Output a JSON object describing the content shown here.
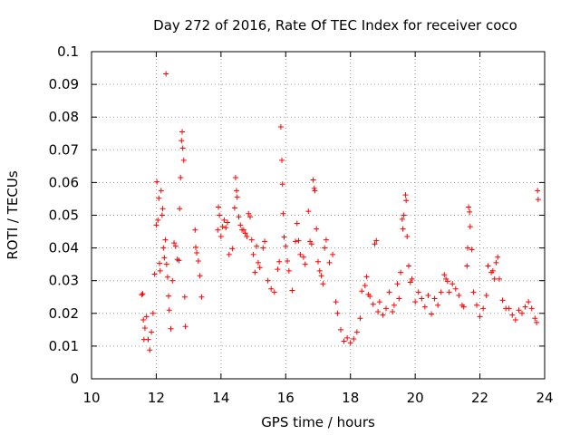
{
  "chart_data": {
    "type": "scatter",
    "title": "Day 272 of 2016, Rate Of TEC Index for receiver coco",
    "xlabel": "GPS time / hours",
    "ylabel": "ROTI / TECUs",
    "xlim": [
      10,
      24
    ],
    "ylim": [
      0,
      0.1
    ],
    "xticks": [
      "10",
      "12",
      "14",
      "16",
      "18",
      "20",
      "22",
      "24"
    ],
    "yticks": [
      "0",
      "0.01",
      "0.02",
      "0.03",
      "0.04",
      "0.05",
      "0.06",
      "0.07",
      "0.08",
      "0.09",
      "0.1"
    ],
    "grid": true,
    "marker": "plus",
    "color": "#ff0000",
    "series": [
      {
        "name": "ROTI",
        "points": [
          [
            11.55,
            0.0257
          ],
          [
            11.58,
            0.026
          ],
          [
            11.6,
            0.018
          ],
          [
            11.62,
            0.012
          ],
          [
            11.65,
            0.0155
          ],
          [
            11.7,
            0.019
          ],
          [
            11.75,
            0.012
          ],
          [
            11.8,
            0.0088
          ],
          [
            11.85,
            0.0143
          ],
          [
            11.9,
            0.02
          ],
          [
            11.95,
            0.032
          ],
          [
            12.0,
            0.047
          ],
          [
            12.02,
            0.0602
          ],
          [
            12.05,
            0.0485
          ],
          [
            12.08,
            0.0552
          ],
          [
            12.1,
            0.0353
          ],
          [
            12.12,
            0.033
          ],
          [
            12.15,
            0.0575
          ],
          [
            12.18,
            0.05
          ],
          [
            12.2,
            0.052
          ],
          [
            12.22,
            0.04
          ],
          [
            12.25,
            0.037
          ],
          [
            12.28,
            0.0425
          ],
          [
            12.3,
            0.0932
          ],
          [
            12.32,
            0.035
          ],
          [
            12.35,
            0.0311
          ],
          [
            12.38,
            0.0253
          ],
          [
            12.4,
            0.021
          ],
          [
            12.45,
            0.0153
          ],
          [
            12.5,
            0.03
          ],
          [
            12.55,
            0.0415
          ],
          [
            12.6,
            0.0405
          ],
          [
            12.65,
            0.0365
          ],
          [
            12.7,
            0.0362
          ],
          [
            12.72,
            0.052
          ],
          [
            12.75,
            0.0615
          ],
          [
            12.78,
            0.0728
          ],
          [
            12.8,
            0.0755
          ],
          [
            12.82,
            0.0705
          ],
          [
            12.85,
            0.0668
          ],
          [
            12.88,
            0.025
          ],
          [
            12.9,
            0.016
          ],
          [
            13.2,
            0.0455
          ],
          [
            13.22,
            0.0402
          ],
          [
            13.25,
            0.0385
          ],
          [
            13.3,
            0.036
          ],
          [
            13.35,
            0.0315
          ],
          [
            13.4,
            0.025
          ],
          [
            13.9,
            0.0455
          ],
          [
            13.92,
            0.0525
          ],
          [
            13.95,
            0.05
          ],
          [
            14.0,
            0.0435
          ],
          [
            14.05,
            0.0465
          ],
          [
            14.1,
            0.0485
          ],
          [
            14.15,
            0.0462
          ],
          [
            14.2,
            0.0478
          ],
          [
            14.25,
            0.038
          ],
          [
            14.35,
            0.0398
          ],
          [
            14.42,
            0.0522
          ],
          [
            14.45,
            0.0615
          ],
          [
            14.48,
            0.0575
          ],
          [
            14.5,
            0.0555
          ],
          [
            14.55,
            0.0495
          ],
          [
            14.6,
            0.047
          ],
          [
            14.65,
            0.0455
          ],
          [
            14.7,
            0.0455
          ],
          [
            14.75,
            0.0445
          ],
          [
            14.8,
            0.0435
          ],
          [
            14.85,
            0.0505
          ],
          [
            14.9,
            0.0495
          ],
          [
            14.95,
            0.0425
          ],
          [
            15.0,
            0.038
          ],
          [
            15.05,
            0.0325
          ],
          [
            15.1,
            0.0405
          ],
          [
            15.15,
            0.0355
          ],
          [
            15.2,
            0.034
          ],
          [
            15.3,
            0.04
          ],
          [
            15.35,
            0.042
          ],
          [
            15.45,
            0.03
          ],
          [
            15.55,
            0.0275
          ],
          [
            15.65,
            0.0265
          ],
          [
            15.75,
            0.0335
          ],
          [
            15.8,
            0.0358
          ],
          [
            15.85,
            0.077
          ],
          [
            15.88,
            0.0668
          ],
          [
            15.9,
            0.0595
          ],
          [
            15.92,
            0.0505
          ],
          [
            15.95,
            0.0433
          ],
          [
            16.0,
            0.0405
          ],
          [
            16.05,
            0.036
          ],
          [
            16.1,
            0.033
          ],
          [
            16.2,
            0.027
          ],
          [
            16.3,
            0.042
          ],
          [
            16.35,
            0.0475
          ],
          [
            16.4,
            0.0422
          ],
          [
            16.45,
            0.038
          ],
          [
            16.55,
            0.0372
          ],
          [
            16.6,
            0.035
          ],
          [
            16.7,
            0.0512
          ],
          [
            16.75,
            0.042
          ],
          [
            16.8,
            0.0412
          ],
          [
            16.85,
            0.0608
          ],
          [
            16.88,
            0.0582
          ],
          [
            16.9,
            0.0575
          ],
          [
            16.95,
            0.0458
          ],
          [
            17.0,
            0.0358
          ],
          [
            17.05,
            0.033
          ],
          [
            17.1,
            0.0315
          ],
          [
            17.15,
            0.029
          ],
          [
            17.2,
            0.04
          ],
          [
            17.25,
            0.0425
          ],
          [
            17.35,
            0.0355
          ],
          [
            17.45,
            0.038
          ],
          [
            17.55,
            0.0235
          ],
          [
            17.6,
            0.02
          ],
          [
            17.7,
            0.015
          ],
          [
            17.8,
            0.0115
          ],
          [
            17.9,
            0.0125
          ],
          [
            18.0,
            0.011
          ],
          [
            18.1,
            0.0122
          ],
          [
            18.2,
            0.0143
          ],
          [
            18.3,
            0.0185
          ],
          [
            18.35,
            0.0268
          ],
          [
            18.45,
            0.0285
          ],
          [
            18.5,
            0.0312
          ],
          [
            18.55,
            0.0258
          ],
          [
            18.6,
            0.0252
          ],
          [
            18.7,
            0.0228
          ],
          [
            18.75,
            0.0412
          ],
          [
            18.8,
            0.0422
          ],
          [
            18.85,
            0.0205
          ],
          [
            18.9,
            0.0235
          ],
          [
            19.0,
            0.0195
          ],
          [
            19.1,
            0.0215
          ],
          [
            19.2,
            0.0265
          ],
          [
            19.3,
            0.0205
          ],
          [
            19.35,
            0.0225
          ],
          [
            19.45,
            0.029
          ],
          [
            19.5,
            0.0245
          ],
          [
            19.55,
            0.0325
          ],
          [
            19.6,
            0.0488
          ],
          [
            19.62,
            0.0458
          ],
          [
            19.65,
            0.05
          ],
          [
            19.7,
            0.0562
          ],
          [
            19.72,
            0.0545
          ],
          [
            19.75,
            0.0435
          ],
          [
            19.8,
            0.0345
          ],
          [
            19.85,
            0.0295
          ],
          [
            19.9,
            0.0305
          ],
          [
            20.0,
            0.0235
          ],
          [
            20.1,
            0.0265
          ],
          [
            20.2,
            0.0245
          ],
          [
            20.3,
            0.022
          ],
          [
            20.4,
            0.0255
          ],
          [
            20.5,
            0.0198
          ],
          [
            20.6,
            0.0245
          ],
          [
            20.7,
            0.0225
          ],
          [
            20.8,
            0.0265
          ],
          [
            20.9,
            0.0318
          ],
          [
            20.95,
            0.0305
          ],
          [
            21.0,
            0.0298
          ],
          [
            21.05,
            0.0265
          ],
          [
            21.15,
            0.029
          ],
          [
            21.25,
            0.0275
          ],
          [
            21.35,
            0.0255
          ],
          [
            21.45,
            0.0225
          ],
          [
            21.5,
            0.022
          ],
          [
            21.6,
            0.0345
          ],
          [
            21.62,
            0.04
          ],
          [
            21.65,
            0.0525
          ],
          [
            21.68,
            0.051
          ],
          [
            21.7,
            0.0465
          ],
          [
            21.75,
            0.0395
          ],
          [
            21.8,
            0.0265
          ],
          [
            21.9,
            0.0225
          ],
          [
            22.0,
            0.019
          ],
          [
            22.1,
            0.0215
          ],
          [
            22.2,
            0.0255
          ],
          [
            22.25,
            0.0345
          ],
          [
            22.35,
            0.0325
          ],
          [
            22.4,
            0.033
          ],
          [
            22.45,
            0.0305
          ],
          [
            22.5,
            0.0355
          ],
          [
            22.55,
            0.0372
          ],
          [
            22.6,
            0.0305
          ],
          [
            22.7,
            0.024
          ],
          [
            22.8,
            0.0215
          ],
          [
            22.9,
            0.0215
          ],
          [
            23.0,
            0.0195
          ],
          [
            23.1,
            0.018
          ],
          [
            23.2,
            0.021
          ],
          [
            23.3,
            0.02
          ],
          [
            23.4,
            0.022
          ],
          [
            23.5,
            0.0235
          ],
          [
            23.6,
            0.0215
          ],
          [
            23.7,
            0.0185
          ],
          [
            23.75,
            0.0172
          ],
          [
            23.78,
            0.0575
          ],
          [
            23.8,
            0.0548
          ]
        ]
      }
    ]
  }
}
